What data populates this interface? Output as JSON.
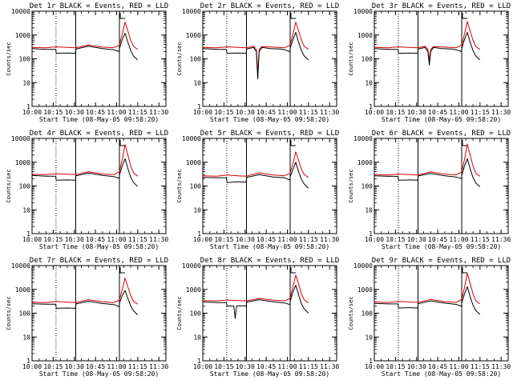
{
  "chart_data": [
    {
      "type": "line",
      "title": "Det 1r BLACK = Events, RED = LLD",
      "xlabel": "Start Time (08-May-05 09:58:20)",
      "ylabel": "Counts/sec",
      "xticks": [
        "10:00",
        "10:15",
        "10:30",
        "10:45",
        "11:00",
        "11:15",
        "11:30"
      ],
      "yscale": "log",
      "ylim": [
        1,
        10000
      ],
      "yticks": [
        "1",
        "10",
        "100",
        "1000",
        "10000"
      ],
      "x_unit": "minutes after 10:00",
      "dotted_lines": [
        17
      ],
      "solid_lines": [
        31,
        62
      ],
      "series": [
        {
          "name": "Events",
          "color": "#000000",
          "x": [
            0,
            10,
            16.8,
            17.2,
            25,
            30.8,
            31.2,
            40,
            50,
            58,
            61.8,
            62.2,
            64,
            66,
            68,
            70,
            72,
            75
          ],
          "y": [
            270,
            250,
            250,
            170,
            175,
            170,
            260,
            340,
            270,
            240,
            200,
            300,
            650,
            1200,
            500,
            220,
            130,
            90
          ]
        },
        {
          "name": "LLD",
          "color": "#dd0000",
          "x": [
            0,
            10,
            17,
            25,
            31,
            40,
            50,
            58,
            62,
            64,
            66,
            68,
            70,
            72,
            75
          ],
          "y": [
            300,
            290,
            320,
            300,
            290,
            380,
            310,
            290,
            380,
            1100,
            3500,
            1500,
            600,
            330,
            250
          ]
        }
      ]
    },
    {
      "type": "line",
      "title": "Det 2r BLACK = Events, RED = LLD",
      "xlabel": "Start Time (08-May-05 09:58:20)",
      "ylabel": "Counts/sec",
      "xticks": [
        "10:00",
        "10:15",
        "10:30",
        "10:45",
        "11:00",
        "11:15",
        "11:30"
      ],
      "yscale": "log",
      "ylim": [
        1,
        10000
      ],
      "yticks": [
        "1",
        "10",
        "100",
        "1000",
        "10000"
      ],
      "x_unit": "minutes after 10:00",
      "dotted_lines": [
        17
      ],
      "solid_lines": [
        31,
        62
      ],
      "series": [
        {
          "name": "Events",
          "color": "#000000",
          "x": [
            0,
            10,
            16.8,
            17.2,
            25,
            30.8,
            31.2,
            36,
            38,
            39,
            40,
            42,
            48,
            55,
            58,
            61.8,
            62.2,
            64,
            66,
            68,
            70,
            72,
            75
          ],
          "y": [
            270,
            250,
            250,
            170,
            175,
            170,
            260,
            300,
            200,
            14,
            200,
            300,
            270,
            260,
            240,
            200,
            300,
            650,
            1300,
            500,
            220,
            130,
            90
          ]
        },
        {
          "name": "LLD",
          "color": "#dd0000",
          "x": [
            0,
            10,
            17,
            25,
            31,
            36,
            38,
            39,
            40,
            42,
            50,
            58,
            62,
            64,
            66,
            68,
            70,
            72,
            75
          ],
          "y": [
            300,
            290,
            320,
            300,
            290,
            340,
            250,
            25,
            250,
            330,
            310,
            290,
            380,
            1100,
            3500,
            1500,
            600,
            330,
            250
          ]
        }
      ]
    },
    {
      "type": "line",
      "title": "Det 3r BLACK = Events, RED = LLD",
      "xlabel": "Start Time (08-May-05 09:58:20)",
      "ylabel": "Counts/sec",
      "xticks": [
        "10:00",
        "10:15",
        "10:30",
        "10:45",
        "11:00",
        "11:15",
        "11:30"
      ],
      "yscale": "log",
      "ylim": [
        1,
        10000
      ],
      "yticks": [
        "1",
        "10",
        "100",
        "1000",
        "10000"
      ],
      "x_unit": "minutes after 10:00",
      "dotted_lines": [
        17
      ],
      "solid_lines": [
        31,
        62
      ],
      "series": [
        {
          "name": "Events",
          "color": "#000000",
          "x": [
            0,
            10,
            16.8,
            17.2,
            25,
            30.8,
            31.2,
            36,
            38,
            39,
            40,
            42,
            48,
            55,
            58,
            61.8,
            62.2,
            64,
            66,
            68,
            70,
            72,
            75
          ],
          "y": [
            270,
            250,
            250,
            170,
            175,
            170,
            260,
            300,
            200,
            55,
            200,
            300,
            270,
            260,
            240,
            200,
            300,
            650,
            1300,
            500,
            220,
            130,
            90
          ]
        },
        {
          "name": "LLD",
          "color": "#dd0000",
          "x": [
            0,
            10,
            17,
            25,
            31,
            36,
            38,
            39,
            40,
            42,
            50,
            58,
            62,
            64,
            66,
            68,
            70,
            72,
            75
          ],
          "y": [
            300,
            290,
            320,
            300,
            290,
            340,
            250,
            90,
            250,
            330,
            310,
            290,
            380,
            1100,
            3700,
            1500,
            600,
            330,
            250
          ]
        }
      ]
    },
    {
      "type": "line",
      "title": "Det 4r BLACK = Events, RED = LLD",
      "xlabel": "Start Time (08-May-05 09:58:20)",
      "ylabel": "Counts/sec",
      "xticks": [
        "10:00",
        "10:15",
        "10:30",
        "10:45",
        "11:00",
        "11:15",
        "11:30"
      ],
      "yscale": "log",
      "ylim": [
        1,
        10000
      ],
      "yticks": [
        "1",
        "10",
        "100",
        "1000",
        "10000"
      ],
      "x_unit": "minutes after 10:00",
      "dotted_lines": [
        17
      ],
      "solid_lines": [
        31,
        62
      ],
      "series": [
        {
          "name": "Events",
          "color": "#000000",
          "x": [
            0,
            10,
            16.8,
            17.2,
            25,
            30.8,
            31.2,
            40,
            50,
            58,
            61.8,
            62.2,
            64,
            66,
            68,
            70,
            72,
            75
          ],
          "y": [
            280,
            260,
            260,
            175,
            180,
            175,
            270,
            350,
            280,
            250,
            210,
            310,
            700,
            1400,
            550,
            230,
            140,
            95
          ]
        },
        {
          "name": "LLD",
          "color": "#dd0000",
          "x": [
            0,
            10,
            17,
            25,
            31,
            40,
            50,
            58,
            62,
            64,
            66,
            68,
            70,
            72,
            75
          ],
          "y": [
            310,
            300,
            330,
            310,
            300,
            400,
            320,
            300,
            400,
            1300,
            5500,
            2000,
            700,
            350,
            260
          ]
        }
      ]
    },
    {
      "type": "line",
      "title": "Det 5r BLACK = Events, RED = LLD",
      "xlabel": "Start Time (08-May-05 09:58:20)",
      "ylabel": "Counts/sec",
      "xticks": [
        "10:00",
        "10:15",
        "10:30",
        "10:45",
        "11:00",
        "11:15",
        "11:30"
      ],
      "yscale": "log",
      "ylim": [
        1,
        10000
      ],
      "yticks": [
        "1",
        "10",
        "100",
        "1000",
        "10000"
      ],
      "x_unit": "minutes after 10:00",
      "dotted_lines": [
        17
      ],
      "solid_lines": [
        31,
        62
      ],
      "series": [
        {
          "name": "Events",
          "color": "#000000",
          "x": [
            0,
            10,
            16.8,
            17.2,
            25,
            30.8,
            31.2,
            40,
            50,
            58,
            61.8,
            62.2,
            64,
            66,
            68,
            70,
            72,
            75
          ],
          "y": [
            230,
            220,
            220,
            140,
            150,
            145,
            230,
            300,
            240,
            220,
            180,
            260,
            500,
            1000,
            400,
            190,
            120,
            80
          ]
        },
        {
          "name": "LLD",
          "color": "#dd0000",
          "x": [
            0,
            10,
            17,
            25,
            31,
            40,
            50,
            58,
            62,
            64,
            66,
            68,
            70,
            72,
            75
          ],
          "y": [
            270,
            260,
            290,
            270,
            260,
            360,
            290,
            270,
            350,
            900,
            2700,
            1200,
            500,
            300,
            230
          ]
        }
      ]
    },
    {
      "type": "line",
      "title": "Det 6r BLACK = Events, RED = LLD",
      "xlabel": "Start Time (08-May-05 09:58:20)",
      "ylabel": "Counts/sec",
      "xticks": [
        "10:00",
        "10:15",
        "10:30",
        "10:45",
        "11:00",
        "11:15",
        "11:30"
      ],
      "yscale": "log",
      "ylim": [
        1,
        10000
      ],
      "yticks": [
        "1",
        "10",
        "100",
        "1000",
        "10000"
      ],
      "x_unit": "minutes after 10:00",
      "dotted_lines": [
        17
      ],
      "solid_lines": [
        31,
        62
      ],
      "series": [
        {
          "name": "Events",
          "color": "#000000",
          "x": [
            0,
            10,
            16.8,
            17.2,
            25,
            30.8,
            31.2,
            40,
            50,
            58,
            61.8,
            62.2,
            64,
            66,
            68,
            70,
            72,
            75
          ],
          "y": [
            270,
            255,
            255,
            175,
            180,
            175,
            265,
            340,
            270,
            240,
            205,
            300,
            700,
            1400,
            540,
            225,
            135,
            92
          ]
        },
        {
          "name": "LLD",
          "color": "#dd0000",
          "x": [
            0,
            10,
            17,
            25,
            31,
            40,
            50,
            58,
            62,
            64,
            66,
            68,
            70,
            72,
            75
          ],
          "y": [
            300,
            290,
            320,
            300,
            290,
            390,
            315,
            295,
            390,
            1300,
            5800,
            2000,
            700,
            340,
            255
          ]
        }
      ]
    },
    {
      "type": "line",
      "title": "Det 7r BLACK = Events, RED = LLD",
      "xlabel": "Start Time (08-May-05 09:58:20)",
      "ylabel": "Counts/sec",
      "xticks": [
        "10:00",
        "10:15",
        "10:30",
        "10:45",
        "11:00",
        "11:15",
        "11:30"
      ],
      "yscale": "log",
      "ylim": [
        1,
        10000
      ],
      "yticks": [
        "1",
        "10",
        "100",
        "1000",
        "10000"
      ],
      "x_unit": "minutes after 10:00",
      "dotted_lines": [
        17
      ],
      "solid_lines": [
        31,
        62
      ],
      "series": [
        {
          "name": "Events",
          "color": "#000000",
          "x": [
            0,
            10,
            16.8,
            17.2,
            25,
            30.8,
            31.2,
            40,
            50,
            58,
            61.8,
            62.2,
            64,
            66,
            68,
            70,
            72,
            75
          ],
          "y": [
            250,
            240,
            240,
            160,
            165,
            160,
            245,
            320,
            255,
            230,
            190,
            280,
            550,
            900,
            420,
            200,
            125,
            85
          ]
        },
        {
          "name": "LLD",
          "color": "#dd0000",
          "x": [
            0,
            10,
            17,
            25,
            31,
            40,
            50,
            58,
            62,
            64,
            66,
            68,
            70,
            72,
            75
          ],
          "y": [
            290,
            280,
            310,
            290,
            280,
            370,
            300,
            280,
            360,
            1000,
            3000,
            1300,
            550,
            310,
            240
          ]
        }
      ]
    },
    {
      "type": "line",
      "title": "Det 8r BLACK = Events, RED = LLD",
      "xlabel": "Start Time (08-May-05 09:58:20)",
      "ylabel": "Counts/sec",
      "xticks": [
        "10:00",
        "10:15",
        "10:30",
        "10:45",
        "11:00",
        "11:15",
        "11:30"
      ],
      "yscale": "log",
      "ylim": [
        1,
        10000
      ],
      "yticks": [
        "1",
        "10",
        "100",
        "1000",
        "10000"
      ],
      "x_unit": "minutes after 10:00",
      "dotted_lines": [
        17
      ],
      "solid_lines": [
        31,
        62
      ],
      "series": [
        {
          "name": "Events",
          "color": "#000000",
          "x": [
            0,
            10,
            16.8,
            17.2,
            22,
            23,
            24,
            25,
            30.8,
            31.2,
            40,
            50,
            58,
            61.8,
            62.2,
            64,
            66,
            68,
            70,
            72,
            75
          ],
          "y": [
            300,
            280,
            280,
            200,
            200,
            60,
            200,
            205,
            200,
            290,
            370,
            300,
            270,
            230,
            340,
            800,
            1500,
            600,
            250,
            150,
            100
          ]
        },
        {
          "name": "LLD",
          "color": "#dd0000",
          "x": [
            0,
            10,
            17,
            25,
            31,
            40,
            50,
            58,
            62,
            64,
            66,
            68,
            70,
            72,
            75
          ],
          "y": [
            340,
            330,
            360,
            340,
            330,
            420,
            350,
            330,
            420,
            1300,
            4000,
            1700,
            650,
            360,
            270
          ]
        }
      ]
    },
    {
      "type": "line",
      "title": "Det 9r BLACK = Events, RED = LLD",
      "xlabel": "Start Time (08-May-05 09:58:20)",
      "ylabel": "Counts/sec",
      "xticks": [
        "10:00",
        "10:15",
        "10:30",
        "10:45",
        "11:00",
        "11:15",
        "11:30"
      ],
      "yscale": "log",
      "ylim": [
        1,
        10000
      ],
      "yticks": [
        "1",
        "10",
        "100",
        "1000",
        "10000"
      ],
      "x_unit": "minutes after 10:00",
      "dotted_lines": [
        17
      ],
      "solid_lines": [
        31,
        62
      ],
      "series": [
        {
          "name": "Events",
          "color": "#000000",
          "x": [
            0,
            10,
            16.8,
            17.2,
            25,
            30.8,
            31.2,
            40,
            50,
            58,
            61.8,
            62.2,
            64,
            66,
            68,
            70,
            72,
            75
          ],
          "y": [
            260,
            245,
            245,
            165,
            170,
            165,
            250,
            330,
            265,
            235,
            195,
            290,
            650,
            1300,
            500,
            215,
            130,
            88
          ]
        },
        {
          "name": "LLD",
          "color": "#dd0000",
          "x": [
            0,
            10,
            17,
            25,
            31,
            40,
            50,
            58,
            62,
            64,
            66,
            68,
            70,
            72,
            75
          ],
          "y": [
            295,
            285,
            315,
            295,
            285,
            380,
            305,
            285,
            380,
            1200,
            4800,
            1800,
            650,
            330,
            250
          ]
        }
      ]
    }
  ]
}
